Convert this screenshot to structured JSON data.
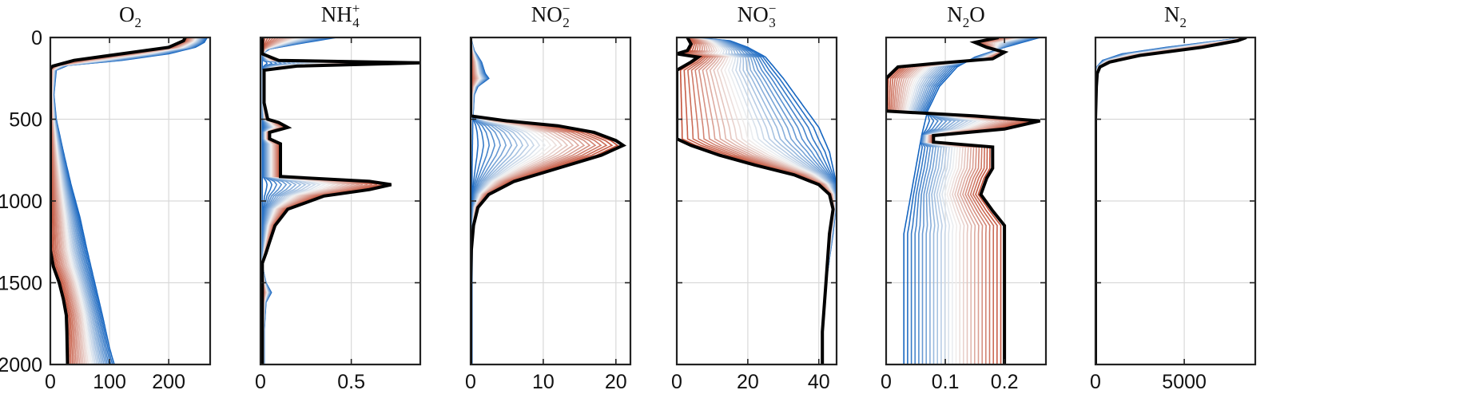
{
  "chart_data": {
    "type": "line",
    "y_axis": {
      "range": [
        0,
        2000
      ],
      "reversed": true,
      "ticks": [
        0,
        500,
        1000,
        1500,
        2000
      ],
      "tick_labels": [
        "0",
        "500",
        "1000",
        "1500",
        "2000"
      ],
      "label": ""
    },
    "grid": true,
    "legend": "none",
    "colors": {
      "early": "#1565c0",
      "middle": "#f2f2f2",
      "late": "#c0442a",
      "final": "#000000"
    },
    "n_profiles": 28,
    "panels": [
      {
        "id": "o2",
        "title_base": "O",
        "title_sub": "2",
        "title_sup": "",
        "title_tail": "",
        "xlim": [
          0,
          270
        ],
        "xticks": [
          0,
          100,
          200
        ],
        "xtick_labels": [
          "0",
          "100",
          "200"
        ],
        "first_profile": [
          [
            265,
            0
          ],
          [
            260,
            30
          ],
          [
            245,
            60
          ],
          [
            200,
            100
          ],
          [
            120,
            140
          ],
          [
            30,
            170
          ],
          [
            10,
            200
          ],
          [
            6,
            350
          ],
          [
            10,
            500
          ],
          [
            22,
            700
          ],
          [
            35,
            900
          ],
          [
            50,
            1100
          ],
          [
            62,
            1300
          ],
          [
            75,
            1500
          ],
          [
            88,
            1700
          ],
          [
            100,
            1900
          ],
          [
            108,
            2000
          ]
        ],
        "final_profile": [
          [
            228,
            0
          ],
          [
            225,
            20
          ],
          [
            200,
            60
          ],
          [
            120,
            100
          ],
          [
            40,
            140
          ],
          [
            4,
            175
          ],
          [
            0,
            190
          ],
          [
            0,
            900
          ],
          [
            0,
            1300
          ],
          [
            5,
            1400
          ],
          [
            15,
            1500
          ],
          [
            22,
            1600
          ],
          [
            27,
            1700
          ],
          [
            28,
            1800
          ],
          [
            29,
            2000
          ]
        ]
      },
      {
        "id": "nh4",
        "title_base": "NH",
        "title_sub": "4",
        "title_sup": "+",
        "title_tail": "",
        "xlim": [
          0,
          0.88
        ],
        "xticks": [
          0,
          0.5
        ],
        "xtick_labels": [
          "0",
          "0.5"
        ],
        "first_profile": [
          [
            0.42,
            0
          ],
          [
            0.2,
            40
          ],
          [
            0.05,
            70
          ],
          [
            0.01,
            100
          ],
          [
            0.01,
            300
          ],
          [
            0.01,
            1400
          ],
          [
            0.03,
            1500
          ],
          [
            0.06,
            1560
          ],
          [
            0.03,
            1620
          ],
          [
            0.02,
            1800
          ],
          [
            0.02,
            2000
          ]
        ],
        "final_profile": [
          [
            0.01,
            0
          ],
          [
            0.01,
            100
          ],
          [
            0.1,
            140
          ],
          [
            0.88,
            155
          ],
          [
            0.2,
            175
          ],
          [
            0.02,
            200
          ],
          [
            0.02,
            400
          ],
          [
            0.04,
            500
          ],
          [
            0.1,
            520
          ],
          [
            0.15,
            550
          ],
          [
            0.05,
            580
          ],
          [
            0.05,
            620
          ],
          [
            0.11,
            650
          ],
          [
            0.11,
            850
          ],
          [
            0.6,
            880
          ],
          [
            0.72,
            900
          ],
          [
            0.6,
            930
          ],
          [
            0.35,
            970
          ],
          [
            0.15,
            1050
          ],
          [
            0.08,
            1150
          ],
          [
            0.05,
            1250
          ],
          [
            0.03,
            1320
          ],
          [
            0.01,
            1380
          ],
          [
            0.01,
            2000
          ]
        ]
      },
      {
        "id": "no2",
        "title_base": "NO",
        "title_sub": "2",
        "title_sup": "−",
        "title_tail": "",
        "xlim": [
          0,
          22
        ],
        "xticks": [
          0,
          10,
          20
        ],
        "xtick_labels": [
          "0",
          "10",
          "20"
        ],
        "first_profile": [
          [
            0,
            0
          ],
          [
            0.5,
            80
          ],
          [
            1.5,
            150
          ],
          [
            2,
            220
          ],
          [
            2.5,
            250
          ],
          [
            1,
            300
          ],
          [
            0.5,
            350
          ],
          [
            0.3,
            500
          ],
          [
            0.2,
            800
          ],
          [
            0.2,
            2000
          ]
        ],
        "final_profile": [
          [
            0,
            0
          ],
          [
            0,
            480
          ],
          [
            5,
            510
          ],
          [
            12,
            540
          ],
          [
            17,
            580
          ],
          [
            20,
            630
          ],
          [
            21,
            660
          ],
          [
            18,
            720
          ],
          [
            12,
            800
          ],
          [
            6,
            880
          ],
          [
            2.5,
            960
          ],
          [
            1,
            1040
          ],
          [
            0.4,
            1150
          ],
          [
            0.1,
            1300
          ],
          [
            0,
            1500
          ],
          [
            0,
            2000
          ]
        ]
      },
      {
        "id": "no3",
        "title_base": "NO",
        "title_sub": "3",
        "title_sup": "−",
        "title_tail": "",
        "xlim": [
          0,
          45
        ],
        "xticks": [
          0,
          20,
          40
        ],
        "xtick_labels": [
          "0",
          "20",
          "40"
        ],
        "first_profile": [
          [
            5,
            0
          ],
          [
            15,
            20
          ],
          [
            20,
            60
          ],
          [
            25,
            120
          ],
          [
            30,
            250
          ],
          [
            35,
            400
          ],
          [
            40,
            550
          ],
          [
            43,
            700
          ],
          [
            45,
            900
          ],
          [
            45,
            1000
          ],
          [
            44,
            1200
          ],
          [
            42,
            1500
          ],
          [
            41,
            1800
          ],
          [
            41,
            2000
          ]
        ],
        "final_profile": [
          [
            3,
            0
          ],
          [
            4,
            40
          ],
          [
            3,
            80
          ],
          [
            0,
            100
          ],
          [
            6,
            120
          ],
          [
            4,
            150
          ],
          [
            0,
            200
          ],
          [
            0,
            620
          ],
          [
            4,
            660
          ],
          [
            12,
            720
          ],
          [
            22,
            780
          ],
          [
            33,
            840
          ],
          [
            40,
            900
          ],
          [
            43,
            960
          ],
          [
            44,
            1050
          ],
          [
            43,
            1200
          ],
          [
            42,
            1500
          ],
          [
            41,
            1800
          ],
          [
            41,
            2000
          ]
        ]
      },
      {
        "id": "n2o",
        "title_base": "N",
        "title_sub": "2",
        "title_sup": "",
        "title_tail": "O",
        "xlim": [
          0,
          0.27
        ],
        "xticks": [
          0,
          0.1,
          0.2
        ],
        "xtick_labels": [
          "0",
          "0.1",
          "0.2"
        ],
        "first_profile": [
          [
            0.26,
            0
          ],
          [
            0.2,
            60
          ],
          [
            0.15,
            120
          ],
          [
            0.12,
            180
          ],
          [
            0.09,
            300
          ],
          [
            0.07,
            450
          ],
          [
            0.06,
            600
          ],
          [
            0.05,
            800
          ],
          [
            0.04,
            1000
          ],
          [
            0.03,
            1200
          ],
          [
            0.03,
            1600
          ],
          [
            0.03,
            2000
          ]
        ],
        "final_profile": [
          [
            0.19,
            0
          ],
          [
            0.15,
            30
          ],
          [
            0.17,
            60
          ],
          [
            0.2,
            90
          ],
          [
            0.18,
            130
          ],
          [
            0.08,
            160
          ],
          [
            0.02,
            180
          ],
          [
            0.0,
            250
          ],
          [
            0.0,
            450
          ],
          [
            0.15,
            480
          ],
          [
            0.26,
            510
          ],
          [
            0.2,
            560
          ],
          [
            0.08,
            600
          ],
          [
            0.08,
            640
          ],
          [
            0.18,
            670
          ],
          [
            0.18,
            800
          ],
          [
            0.17,
            860
          ],
          [
            0.16,
            960
          ],
          [
            0.18,
            1060
          ],
          [
            0.2,
            1150
          ],
          [
            0.2,
            1330
          ],
          [
            0.2,
            2000
          ]
        ]
      },
      {
        "id": "n2",
        "title_base": "N",
        "title_sub": "2",
        "title_sup": "",
        "title_tail": "",
        "xlim": [
          0,
          9000
        ],
        "xticks": [
          0,
          5000
        ],
        "xtick_labels": [
          "0",
          "5000"
        ],
        "first_profile": [
          [
            8500,
            0
          ],
          [
            7000,
            20
          ],
          [
            4000,
            60
          ],
          [
            1500,
            100
          ],
          [
            400,
            140
          ],
          [
            80,
            180
          ],
          [
            0,
            220
          ],
          [
            0,
            2000
          ]
        ],
        "final_profile": [
          [
            8500,
            0
          ],
          [
            8000,
            20
          ],
          [
            6000,
            60
          ],
          [
            2500,
            110
          ],
          [
            800,
            150
          ],
          [
            250,
            180
          ],
          [
            100,
            220
          ],
          [
            50,
            300
          ],
          [
            0,
            500
          ],
          [
            0,
            2000
          ]
        ]
      }
    ]
  }
}
